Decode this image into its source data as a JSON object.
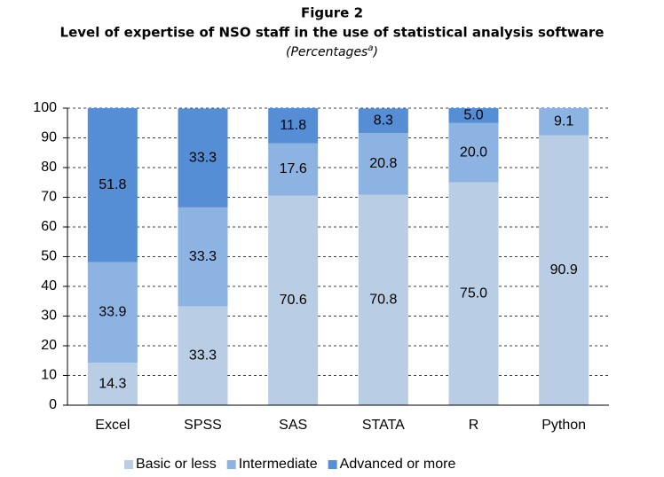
{
  "chart_data": {
    "type": "stacked_bar",
    "title": "Figure 2",
    "subtitle": "Level of expertise of NSO staff in the use of statistical analysis software",
    "caption_parts": [
      "(Percentages",
      "a",
      ")"
    ],
    "categories": [
      "Excel",
      "SPSS",
      "SAS",
      "STATA",
      "R",
      "Python"
    ],
    "series": [
      {
        "name": "Basic or less",
        "color": "#b9cde5",
        "values": [
          14.3,
          33.3,
          70.6,
          70.8,
          75.0,
          90.9
        ],
        "value_labels": [
          "14.3",
          "33.3",
          "70.6",
          "70.8",
          "75.0",
          "90.9"
        ]
      },
      {
        "name": "Intermediate",
        "color": "#8db3e2",
        "values": [
          33.9,
          33.3,
          17.6,
          20.8,
          20.0,
          9.1
        ],
        "value_labels": [
          "33.9",
          "33.3",
          "17.6",
          "20.8",
          "20.0",
          "9.1"
        ]
      },
      {
        "name": "Advanced or more",
        "color": "#558ed5",
        "values": [
          51.8,
          33.3,
          11.8,
          8.3,
          5.0,
          null
        ],
        "value_labels": [
          "51.8",
          "33.3",
          "11.8",
          "8.3",
          "5.0",
          null
        ]
      }
    ],
    "ylim": [
      0,
      100
    ],
    "yticks": [
      0,
      10,
      20,
      30,
      40,
      50,
      60,
      70,
      80,
      90,
      100
    ],
    "grid": true,
    "legend": "bottom"
  }
}
